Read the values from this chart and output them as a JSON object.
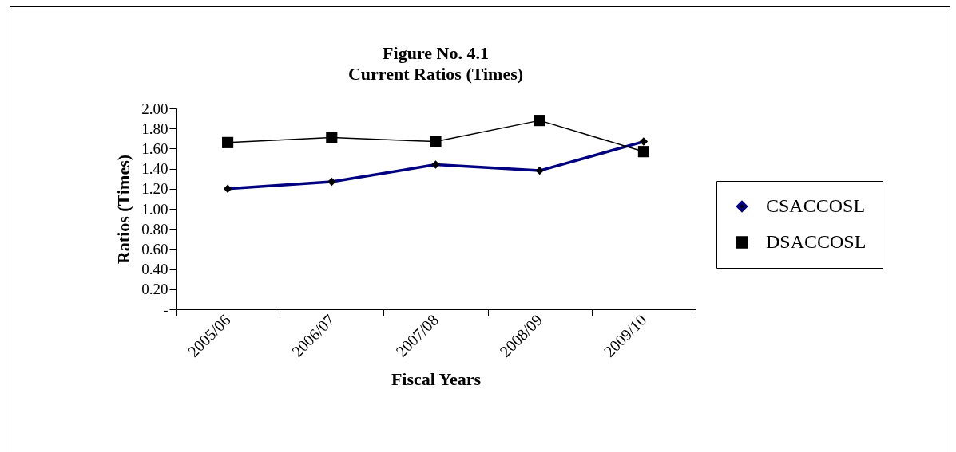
{
  "chart_data": {
    "type": "line",
    "title": "Figure No. 4.1",
    "subtitle": "Current Ratios (Times)",
    "xlabel": "Fiscal Years",
    "ylabel": "Ratios (Times)",
    "categories": [
      "2005/06",
      "2006/07",
      "2007/08",
      "2008/09",
      "2009/10"
    ],
    "series": [
      {
        "name": "CSACCOSL",
        "color": "#000080",
        "marker": "diamond",
        "values": [
          1.2,
          1.27,
          1.44,
          1.38,
          1.67
        ]
      },
      {
        "name": "DSACCOSL",
        "color": "#000000",
        "marker": "square",
        "values": [
          1.66,
          1.71,
          1.67,
          1.88,
          1.57
        ]
      }
    ],
    "ylim": [
      0,
      2
    ],
    "yticks": [
      {
        "value": 0,
        "label": "-"
      },
      {
        "value": 0.2,
        "label": "0.20"
      },
      {
        "value": 0.4,
        "label": "0.40"
      },
      {
        "value": 0.6,
        "label": "0.60"
      },
      {
        "value": 0.8,
        "label": "0.80"
      },
      {
        "value": 1,
        "label": "1.00"
      },
      {
        "value": 1.2,
        "label": "1.20"
      },
      {
        "value": 1.4,
        "label": "1.40"
      },
      {
        "value": 1.6,
        "label": "1.60"
      },
      {
        "value": 1.8,
        "label": "1.80"
      },
      {
        "value": 2,
        "label": "2.00"
      }
    ],
    "grid": false,
    "legend": "right"
  }
}
